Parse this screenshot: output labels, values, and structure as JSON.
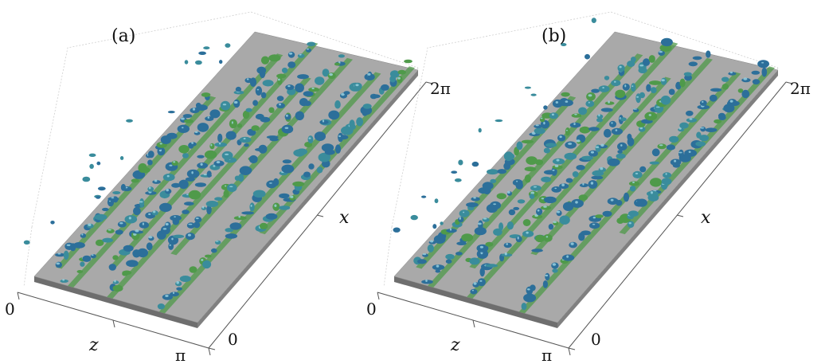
{
  "figure": {
    "panels": [
      {
        "label": "(a)",
        "z_axis": {
          "label": "z",
          "tick_start": "0",
          "tick_end": "π"
        },
        "x_axis": {
          "label": "x",
          "tick_start": "0",
          "tick_end": "2π"
        }
      },
      {
        "label": "(b)",
        "z_axis": {
          "label": "z",
          "tick_start": "0",
          "tick_end": "π"
        },
        "x_axis": {
          "label": "x",
          "tick_start": "0",
          "tick_end": "2π"
        }
      }
    ],
    "colors": {
      "plate_top": "#a9a9a9",
      "plate_edge": "#6e6e6e",
      "structure_blue": "#2c6f9a",
      "structure_teal": "#3a8c9c",
      "structure_green": "#4f9a4a",
      "highlight": "#9fd6e3"
    }
  }
}
